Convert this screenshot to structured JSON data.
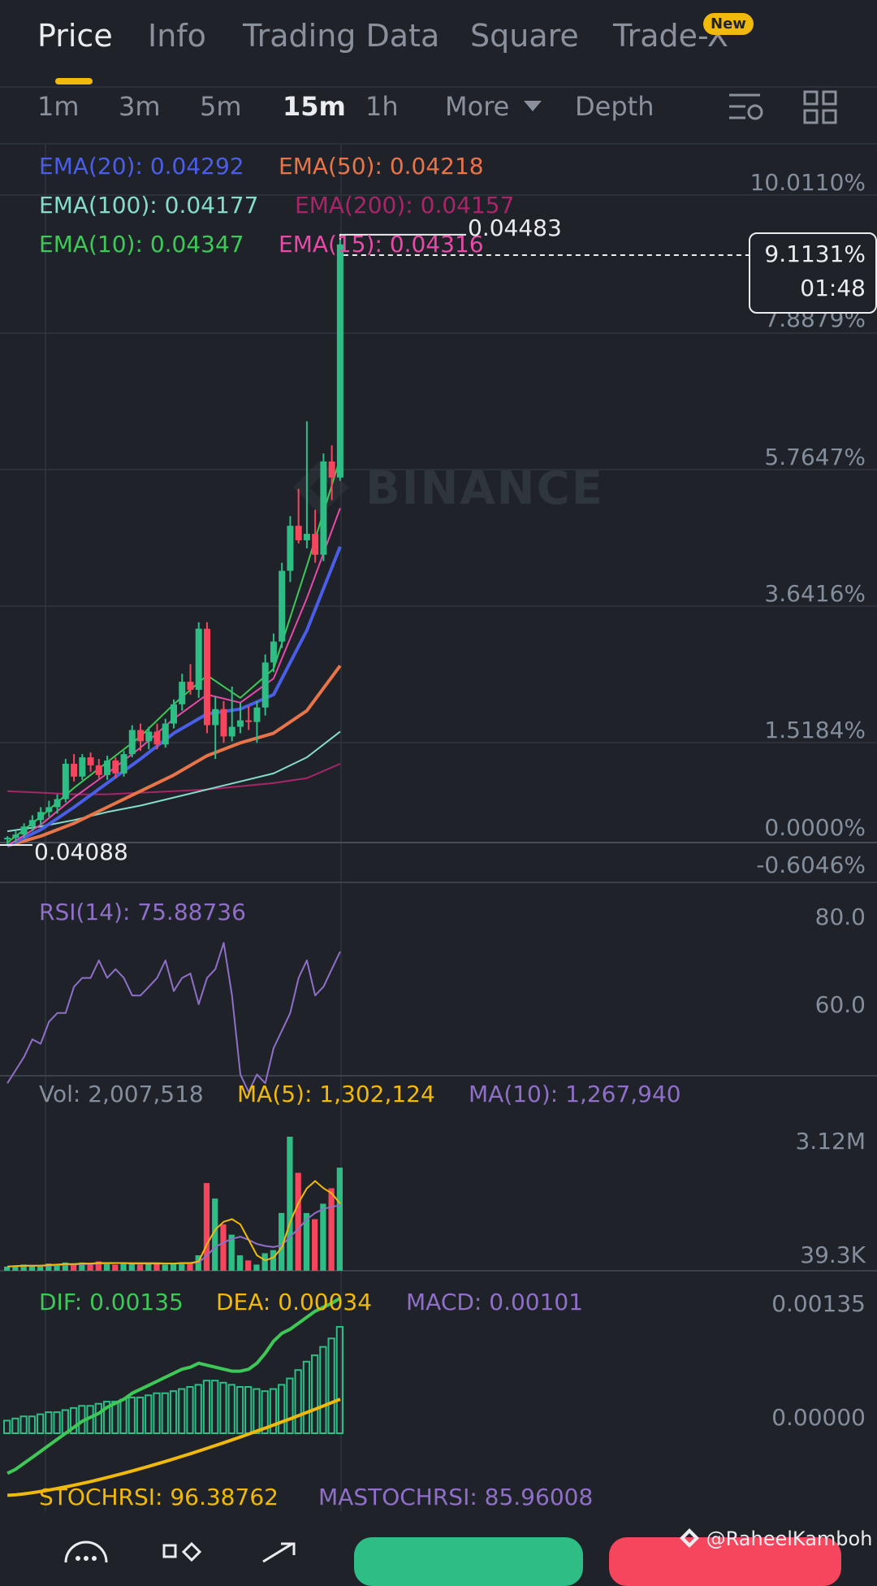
{
  "tabs": [
    {
      "label": "Price"
    },
    {
      "label": "Info"
    },
    {
      "label": "Trading Data"
    },
    {
      "label": "Square"
    },
    {
      "label": "Trade-X"
    }
  ],
  "new_badge": "New",
  "timeframes": [
    {
      "label": "1m"
    },
    {
      "label": "3m"
    },
    {
      "label": "5m"
    },
    {
      "label": "15m"
    },
    {
      "label": "1h"
    },
    {
      "label": "More"
    },
    {
      "label": "Depth"
    }
  ],
  "ema": {
    "ema20": "EMA(20): 0.04292",
    "ema50": "EMA(50): 0.04218",
    "ema100": "EMA(100): 0.04177",
    "ema200": "EMA(200): 0.04157",
    "ema10": "EMA(10): 0.04347",
    "ema15": "EMA(15): 0.04316"
  },
  "price": {
    "high_marker": "0.04483",
    "low_marker": "0.04088",
    "current_pct": "9.1131%",
    "countdown": "01:48",
    "axis": [
      "10.0110%",
      "7.8879%",
      "5.7647%",
      "3.6416%",
      "1.5184%",
      "0.0000%",
      "-0.6046%"
    ]
  },
  "watermark": "BINANCE",
  "rsi": {
    "label": "RSI(14): 75.88736",
    "axis": [
      "80.0",
      "60.0"
    ]
  },
  "volume": {
    "vol": "Vol: 2,007,518",
    "ma5": "MA(5): 1,302,124",
    "ma10": "MA(10): 1,267,940",
    "axis": [
      "3.12M",
      "39.3K"
    ]
  },
  "macd": {
    "dif": "DIF: 0.00135",
    "dea": "DEA: 0.00034",
    "macd": "MACD: 0.00101",
    "axis": [
      "0.00135",
      "0.00000"
    ]
  },
  "stochrsi": {
    "stoch": "STOCHRSI: 96.38762",
    "ma": "MASTOCHRSI: 85.96008"
  },
  "credit": "@RaheelKamboh",
  "colors": {
    "ema20": "#4a5ee8",
    "ema50": "#e8744a",
    "ema100": "#86dcc8",
    "ema200": "#a8256a",
    "ema10": "#3ec858",
    "ema15": "#e84aa8",
    "up": "#2ebd85",
    "down": "#f6465d",
    "accent": "#f0b90b",
    "rsi": "#8f6fc8"
  }
}
